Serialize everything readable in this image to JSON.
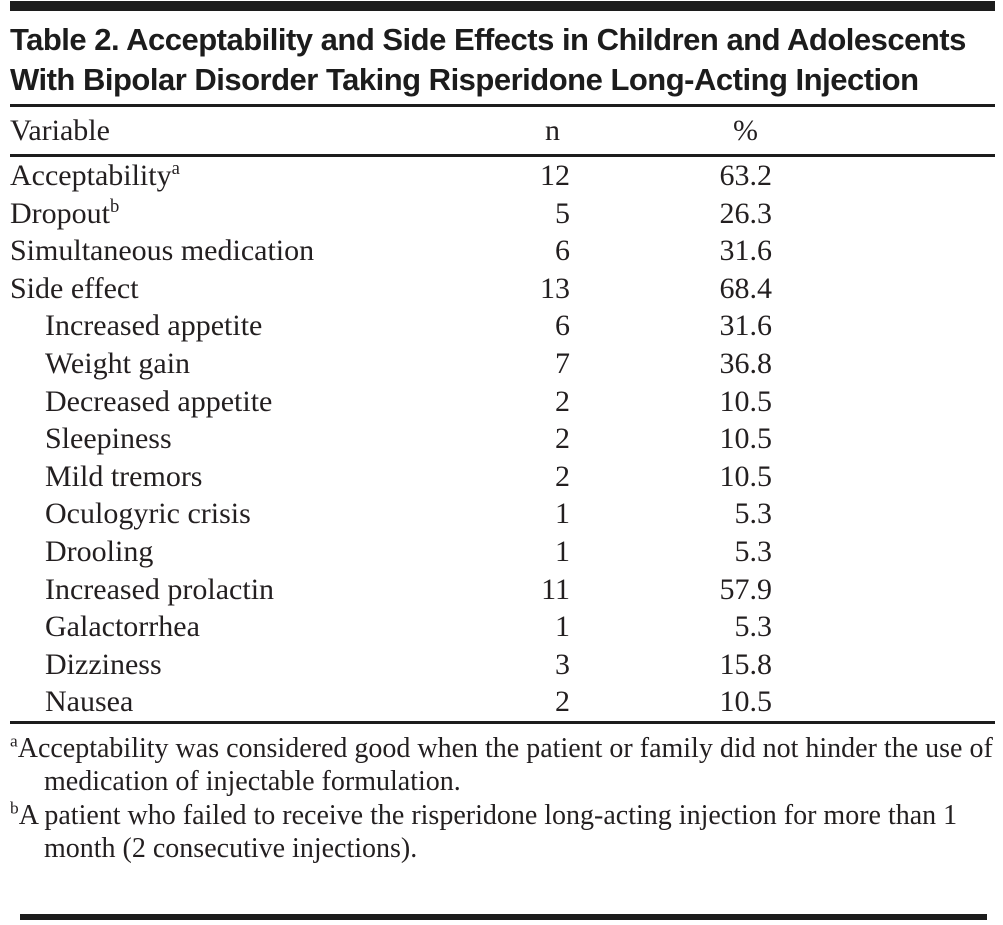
{
  "table": {
    "title": "Table 2. Acceptability and Side Effects in Children and Adolescents With Bipolar Disorder Taking Risperidone Long-Acting Injection",
    "columns": [
      "Variable",
      "n",
      "%"
    ],
    "rows": [
      {
        "variable": "Acceptability",
        "sup": "a",
        "indent": false,
        "n": "12",
        "pct": "63.2"
      },
      {
        "variable": "Dropout",
        "sup": "b",
        "indent": false,
        "n": "5",
        "pct": "26.3"
      },
      {
        "variable": "Simultaneous medication",
        "sup": "",
        "indent": false,
        "n": "6",
        "pct": "31.6"
      },
      {
        "variable": "Side effect",
        "sup": "",
        "indent": false,
        "n": "13",
        "pct": "68.4"
      },
      {
        "variable": "Increased appetite",
        "sup": "",
        "indent": true,
        "n": "6",
        "pct": "31.6"
      },
      {
        "variable": "Weight gain",
        "sup": "",
        "indent": true,
        "n": "7",
        "pct": "36.8"
      },
      {
        "variable": "Decreased appetite",
        "sup": "",
        "indent": true,
        "n": "2",
        "pct": "10.5"
      },
      {
        "variable": "Sleepiness",
        "sup": "",
        "indent": true,
        "n": "2",
        "pct": "10.5"
      },
      {
        "variable": "Mild tremors",
        "sup": "",
        "indent": true,
        "n": "2",
        "pct": "10.5"
      },
      {
        "variable": "Oculogyric crisis",
        "sup": "",
        "indent": true,
        "n": "1",
        "pct": "5.3"
      },
      {
        "variable": "Drooling",
        "sup": "",
        "indent": true,
        "n": "1",
        "pct": "5.3"
      },
      {
        "variable": "Increased prolactin",
        "sup": "",
        "indent": true,
        "n": "11",
        "pct": "57.9"
      },
      {
        "variable": "Galactorrhea",
        "sup": "",
        "indent": true,
        "n": "1",
        "pct": "5.3"
      },
      {
        "variable": "Dizziness",
        "sup": "",
        "indent": true,
        "n": "3",
        "pct": "15.8"
      },
      {
        "variable": "Nausea",
        "sup": "",
        "indent": true,
        "n": "2",
        "pct": "10.5"
      }
    ],
    "footnotes": [
      {
        "marker": "a",
        "text": "Acceptability was considered good when the patient or family did not hinder the use of medication of injectable formulation."
      },
      {
        "marker": "b",
        "text": "A patient who failed to receive the risperidone long-acting injection for more than 1 month (2 consecutive injections)."
      }
    ],
    "colors": {
      "text": "#231f20",
      "rule": "#1c1c1c",
      "background": "#ffffff"
    }
  }
}
